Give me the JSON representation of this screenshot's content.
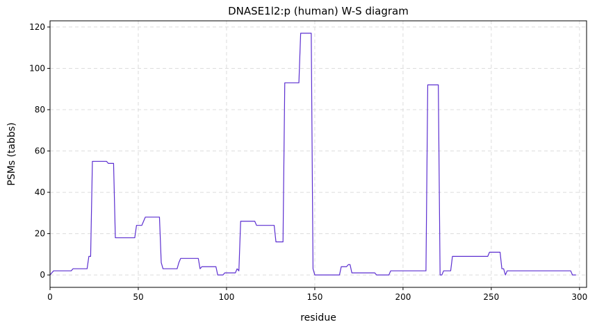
{
  "chart_data": {
    "type": "line",
    "title": "DNASE1l2:p (human) W-S diagram",
    "xlabel": "residue",
    "ylabel": "PSMs (tabbs)",
    "xlim": [
      0,
      304
    ],
    "ylim": [
      -6,
      123
    ],
    "xticks": [
      0,
      50,
      100,
      150,
      200,
      250,
      300
    ],
    "yticks": [
      0,
      20,
      40,
      60,
      80,
      100,
      120
    ],
    "grid": true,
    "series": [
      {
        "color": "#5b2ed0",
        "points": [
          [
            0,
            0
          ],
          [
            1,
            1
          ],
          [
            2,
            2
          ],
          [
            12,
            2
          ],
          [
            13,
            3
          ],
          [
            21,
            3
          ],
          [
            22,
            9
          ],
          [
            23,
            9
          ],
          [
            24,
            55
          ],
          [
            32,
            55
          ],
          [
            33,
            54
          ],
          [
            36,
            54
          ],
          [
            37,
            18
          ],
          [
            48,
            18
          ],
          [
            49,
            24
          ],
          [
            52,
            24
          ],
          [
            53,
            26
          ],
          [
            54,
            28
          ],
          [
            62,
            28
          ],
          [
            63,
            6
          ],
          [
            64,
            3
          ],
          [
            72,
            3
          ],
          [
            73,
            6
          ],
          [
            74,
            8
          ],
          [
            84,
            8
          ],
          [
            85,
            3
          ],
          [
            86,
            4
          ],
          [
            94,
            4
          ],
          [
            95,
            0
          ],
          [
            98,
            0
          ],
          [
            99,
            1
          ],
          [
            105,
            1
          ],
          [
            106,
            3
          ],
          [
            107,
            2
          ],
          [
            108,
            26
          ],
          [
            116,
            26
          ],
          [
            117,
            24
          ],
          [
            127,
            24
          ],
          [
            128,
            16
          ],
          [
            132,
            16
          ],
          [
            133,
            93
          ],
          [
            141,
            93
          ],
          [
            142,
            117
          ],
          [
            148,
            117
          ],
          [
            149,
            3
          ],
          [
            150,
            0
          ],
          [
            164,
            0
          ],
          [
            165,
            4
          ],
          [
            168,
            4
          ],
          [
            169,
            5
          ],
          [
            170,
            5
          ],
          [
            171,
            1
          ],
          [
            184,
            1
          ],
          [
            185,
            0
          ],
          [
            192,
            0
          ],
          [
            193,
            2
          ],
          [
            213,
            2
          ],
          [
            214,
            92
          ],
          [
            220,
            92
          ],
          [
            221,
            0
          ],
          [
            222,
            0
          ],
          [
            223,
            2
          ],
          [
            227,
            2
          ],
          [
            228,
            9
          ],
          [
            248,
            9
          ],
          [
            249,
            11
          ],
          [
            255,
            11
          ],
          [
            256,
            3
          ],
          [
            257,
            3
          ],
          [
            258,
            0
          ],
          [
            259,
            2
          ],
          [
            295,
            2
          ],
          [
            296,
            0
          ],
          [
            298,
            0
          ]
        ]
      }
    ]
  }
}
